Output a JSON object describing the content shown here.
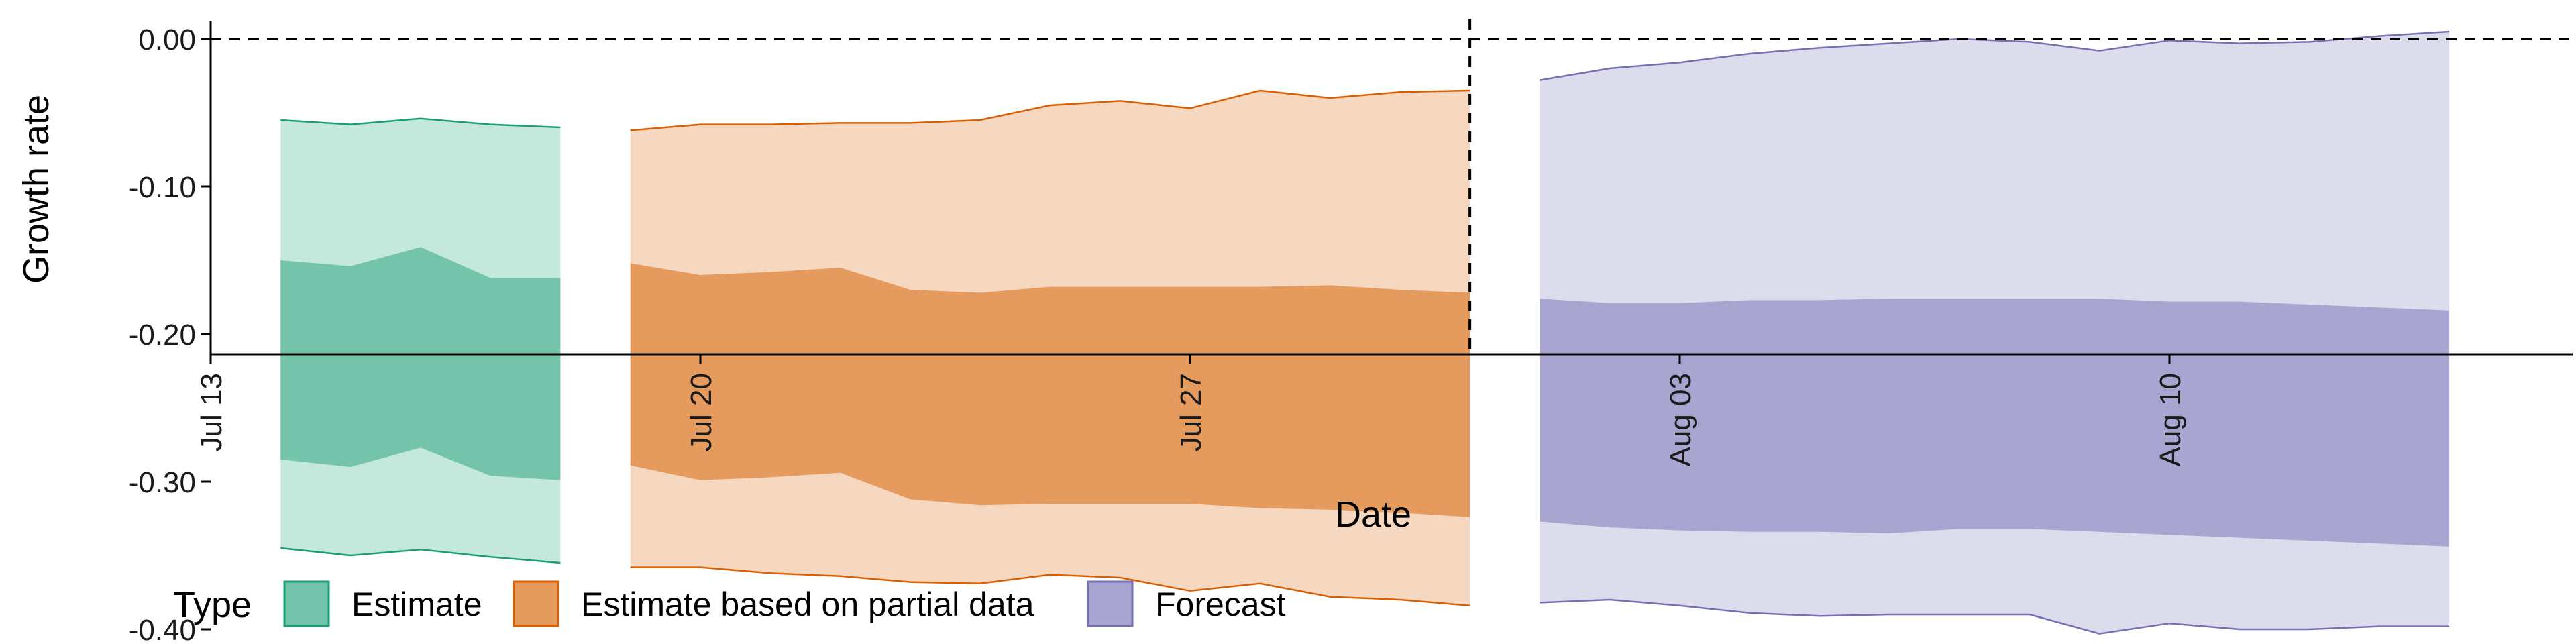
{
  "chart_data": {
    "type": "area",
    "xlabel": "Date",
    "ylabel": "Growth rate",
    "xlim": [
      "2020-07-13",
      "2020-08-15"
    ],
    "ylim": [
      -0.42,
      0.02
    ],
    "y_ticks": [
      "0.00",
      "-0.10",
      "-0.20",
      "-0.30",
      "-0.40"
    ],
    "x_ticks": [
      {
        "date": "2020-07-13",
        "label": "Jul 13"
      },
      {
        "date": "2020-07-20",
        "label": "Jul 20"
      },
      {
        "date": "2020-07-27",
        "label": "Jul 27"
      },
      {
        "date": "2020-08-03",
        "label": "Aug 03"
      },
      {
        "date": "2020-08-10",
        "label": "Aug 10"
      }
    ],
    "hline": {
      "y": 0.0,
      "style": "dashed"
    },
    "vline": {
      "date": "2020-07-31",
      "style": "dashed"
    },
    "legend": {
      "title": "Type",
      "position": "bottom"
    },
    "series": [
      {
        "name": "Estimate",
        "color_fill": "#73c4aa",
        "color_outer": "#c5e8dd",
        "color_line": "#1b9e77",
        "dates": [
          "2020-07-14",
          "2020-07-15",
          "2020-07-16",
          "2020-07-17",
          "2020-07-18"
        ],
        "outer_upper": [
          -0.055,
          -0.058,
          -0.054,
          -0.058,
          -0.06
        ],
        "inner_upper": [
          -0.15,
          -0.154,
          -0.141,
          -0.162,
          -0.162
        ],
        "inner_lower": [
          -0.285,
          -0.29,
          -0.277,
          -0.296,
          -0.299
        ],
        "outer_lower": [
          -0.345,
          -0.35,
          -0.346,
          -0.351,
          -0.355
        ]
      },
      {
        "name": "Estimate based on partial data",
        "color_fill": "#e69b5e",
        "color_outer": "#f6d7bf",
        "color_line": "#d95f02",
        "dates": [
          "2020-07-19",
          "2020-07-20",
          "2020-07-21",
          "2020-07-22",
          "2020-07-23",
          "2020-07-24",
          "2020-07-25",
          "2020-07-26",
          "2020-07-27",
          "2020-07-28",
          "2020-07-29",
          "2020-07-30",
          "2020-07-31"
        ],
        "outer_upper": [
          -0.062,
          -0.058,
          -0.058,
          -0.057,
          -0.057,
          -0.055,
          -0.045,
          -0.042,
          -0.047,
          -0.035,
          -0.04,
          -0.036,
          -0.035
        ],
        "inner_upper": [
          -0.152,
          -0.16,
          -0.158,
          -0.155,
          -0.17,
          -0.172,
          -0.168,
          -0.168,
          -0.168,
          -0.168,
          -0.167,
          -0.17,
          -0.172
        ],
        "inner_lower": [
          -0.289,
          -0.299,
          -0.297,
          -0.294,
          -0.312,
          -0.316,
          -0.315,
          -0.315,
          -0.315,
          -0.318,
          -0.319,
          -0.321,
          -0.324
        ],
        "outer_lower": [
          -0.358,
          -0.358,
          -0.362,
          -0.364,
          -0.368,
          -0.369,
          -0.363,
          -0.365,
          -0.374,
          -0.369,
          -0.378,
          -0.38,
          -0.384
        ]
      },
      {
        "name": "Forecast",
        "color_fill": "#a8a5d1",
        "color_outer": "#dddcec",
        "color_line": "#7570b3",
        "dates": [
          "2020-08-01",
          "2020-08-02",
          "2020-08-03",
          "2020-08-04",
          "2020-08-05",
          "2020-08-06",
          "2020-08-07",
          "2020-08-08",
          "2020-08-09",
          "2020-08-10",
          "2020-08-11",
          "2020-08-12",
          "2020-08-13",
          "2020-08-14"
        ],
        "outer_upper": [
          -0.028,
          -0.02,
          -0.016,
          -0.01,
          -0.006,
          -0.003,
          0.0,
          -0.002,
          -0.008,
          -0.001,
          -0.003,
          -0.002,
          0.002,
          0.005
        ],
        "inner_upper": [
          -0.176,
          -0.179,
          -0.179,
          -0.177,
          -0.177,
          -0.176,
          -0.176,
          -0.176,
          -0.176,
          -0.178,
          -0.178,
          -0.18,
          -0.182,
          -0.184
        ],
        "inner_lower": [
          -0.327,
          -0.331,
          -0.333,
          -0.334,
          -0.334,
          -0.335,
          -0.332,
          -0.332,
          -0.334,
          -0.336,
          -0.338,
          -0.34,
          -0.342,
          -0.344
        ],
        "outer_lower": [
          -0.382,
          -0.38,
          -0.384,
          -0.389,
          -0.391,
          -0.39,
          -0.39,
          -0.39,
          -0.403,
          -0.396,
          -0.4,
          -0.4,
          -0.398,
          -0.398
        ]
      }
    ]
  }
}
